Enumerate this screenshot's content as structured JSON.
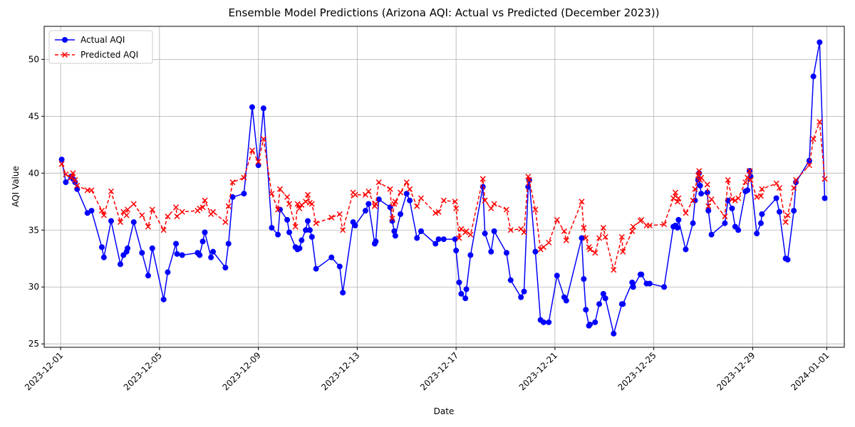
{
  "chart_data": {
    "type": "line",
    "title": "Ensemble Model Predictions (Arizona AQI: Actual vs Predicted (December 2023))",
    "x_label": "Date",
    "y_label": "AQI Value",
    "x": [
      "2023-12-01 01:00",
      "2023-12-01 05:00",
      "2023-12-01 10:00",
      "2023-12-01 12:00",
      "2023-12-01 14:00",
      "2023-12-01 16:00",
      "2023-12-02 02:00",
      "2023-12-02 06:00",
      "2023-12-02 16:00",
      "2023-12-02 18:00",
      "2023-12-03 01:00",
      "2023-12-03 10:00",
      "2023-12-03 13:00",
      "2023-12-03 16:00",
      "2023-12-03 17:00",
      "2023-12-03 23:00",
      "2023-12-04 07:00",
      "2023-12-04 13:00",
      "2023-12-04 17:00",
      "2023-12-05 04:00",
      "2023-12-05 08:00",
      "2023-12-05 16:00",
      "2023-12-05 17:00",
      "2023-12-05 22:00",
      "2023-12-06 13:00",
      "2023-12-06 15:00",
      "2023-12-06 18:00",
      "2023-12-06 20:00",
      "2023-12-07 02:00",
      "2023-12-07 04:00",
      "2023-12-07 16:00",
      "2023-12-07 19:00",
      "2023-12-07 23:00",
      "2023-12-08 10:00",
      "2023-12-08 18:00",
      "2023-12-09 00:00",
      "2023-12-09 05:00",
      "2023-12-09 13:00",
      "2023-12-09 19:00",
      "2023-12-09 21:00",
      "2023-12-10 04:00",
      "2023-12-10 06:00",
      "2023-12-10 12:00",
      "2023-12-10 14:00",
      "2023-12-10 16:00",
      "2023-12-10 18:00",
      "2023-12-10 22:00",
      "2023-12-11 00:00",
      "2023-12-11 02:00",
      "2023-12-11 04:00",
      "2023-12-11 08:00",
      "2023-12-11 23:00",
      "2023-12-12 07:00",
      "2023-12-12 10:00",
      "2023-12-12 20:00",
      "2023-12-12 22:00",
      "2023-12-13 08:00",
      "2023-12-13 11:00",
      "2023-12-13 17:00",
      "2023-12-13 18:00",
      "2023-12-13 21:00",
      "2023-12-14 08:00",
      "2023-12-14 10:00",
      "2023-12-14 12:00",
      "2023-12-14 13:00",
      "2023-12-14 18:00",
      "2023-12-15 00:00",
      "2023-12-15 03:00",
      "2023-12-15 10:00",
      "2023-12-15 14:00",
      "2023-12-16 04:00",
      "2023-12-16 07:00",
      "2023-12-16 12:00",
      "2023-12-16 23:00",
      "2023-12-17 00:00",
      "2023-12-17 03:00",
      "2023-12-17 05:00",
      "2023-12-17 09:00",
      "2023-12-17 10:00",
      "2023-12-17 14:00",
      "2023-12-18 02:00",
      "2023-12-18 04:00",
      "2023-12-18 10:00",
      "2023-12-18 13:00",
      "2023-12-19 01:00",
      "2023-12-19 05:00",
      "2023-12-19 15:00",
      "2023-12-19 18:00",
      "2023-12-19 22:00",
      "2023-12-19 23:00",
      "2023-12-20 05:00",
      "2023-12-20 10:00",
      "2023-12-20 13:00",
      "2023-12-20 18:00",
      "2023-12-21 02:00",
      "2023-12-21 09:00",
      "2023-12-21 11:00",
      "2023-12-22 02:00",
      "2023-12-22 04:00",
      "2023-12-22 06:00",
      "2023-12-22 09:00",
      "2023-12-22 10:00",
      "2023-12-22 15:00",
      "2023-12-22 19:00",
      "2023-12-22 23:00",
      "2023-12-23 01:00",
      "2023-12-23 09:00",
      "2023-12-23 17:00",
      "2023-12-23 18:00",
      "2023-12-24 03:00",
      "2023-12-24 04:00",
      "2023-12-24 11:00",
      "2023-12-24 12:00",
      "2023-12-24 17:00",
      "2023-12-24 20:00",
      "2023-12-25 10:00",
      "2023-12-25 19:00",
      "2023-12-25 21:00",
      "2023-12-25 23:00",
      "2023-12-26 00:00",
      "2023-12-26 07:00",
      "2023-12-26 14:00",
      "2023-12-26 16:00",
      "2023-12-26 19:00",
      "2023-12-26 20:00",
      "2023-12-26 21:00",
      "2023-12-26 22:00",
      "2023-12-27 04:00",
      "2023-12-27 05:00",
      "2023-12-27 08:00",
      "2023-12-27 21:00",
      "2023-12-28 00:00",
      "2023-12-28 04:00",
      "2023-12-28 07:00",
      "2023-12-28 10:00",
      "2023-12-28 17:00",
      "2023-12-28 19:00",
      "2023-12-28 21:00",
      "2023-12-28 22:00",
      "2023-12-29 04:00",
      "2023-12-29 08:00",
      "2023-12-29 09:00",
      "2023-12-29 23:00",
      "2023-12-30 02:00",
      "2023-12-30 08:00",
      "2023-12-30 10:00",
      "2023-12-30 16:00",
      "2023-12-30 18:00",
      "2023-12-31 07:00",
      "2023-12-31 11:00",
      "2023-12-31 17:00",
      "2023-12-31 22:00"
    ],
    "series": [
      {
        "name": "Actual AQI",
        "color": "#0000ff",
        "marker": "circle",
        "dashed": false,
        "values": [
          41.2,
          39.2,
          39.7,
          39.5,
          39.2,
          38.6,
          36.5,
          36.7,
          33.5,
          32.6,
          35.8,
          32.0,
          32.8,
          33.1,
          33.4,
          35.7,
          33.0,
          31.0,
          33.4,
          28.9,
          31.3,
          33.8,
          32.9,
          32.8,
          33.0,
          32.8,
          34.0,
          34.8,
          32.6,
          33.1,
          31.7,
          33.8,
          37.9,
          38.2,
          45.8,
          40.7,
          45.7,
          35.2,
          34.6,
          36.8,
          35.9,
          34.8,
          33.5,
          33.3,
          33.4,
          34.1,
          35.0,
          35.8,
          35.0,
          34.4,
          31.6,
          32.6,
          31.8,
          29.5,
          35.7,
          35.4,
          36.7,
          37.3,
          33.8,
          34.0,
          37.7,
          37.0,
          35.8,
          34.9,
          34.5,
          36.4,
          38.2,
          37.6,
          34.3,
          34.9,
          33.8,
          34.2,
          34.2,
          34.2,
          33.2,
          30.4,
          29.4,
          29.0,
          29.8,
          32.8,
          38.8,
          34.7,
          33.1,
          34.9,
          33.0,
          30.6,
          29.1,
          29.6,
          38.8,
          39.4,
          33.1,
          27.1,
          26.9,
          26.9,
          31.0,
          29.1,
          28.8,
          34.3,
          30.7,
          28.0,
          26.6,
          26.7,
          26.9,
          28.5,
          29.4,
          29.0,
          25.9,
          28.5,
          28.5,
          30.4,
          30.0,
          31.1,
          31.1,
          30.3,
          30.3,
          30.0,
          35.3,
          35.4,
          35.2,
          35.9,
          33.3,
          35.6,
          37.6,
          39.4,
          40.0,
          38.9,
          38.2,
          38.3,
          36.7,
          34.6,
          35.6,
          37.6,
          36.9,
          35.3,
          35.0,
          38.4,
          38.5,
          40.2,
          39.7,
          34.7,
          35.6,
          36.4,
          37.8,
          36.6,
          32.5,
          32.4,
          36.7,
          39.2,
          41.1,
          48.5,
          51.5,
          37.8
        ]
      },
      {
        "name": "Predicted AQI",
        "color": "#ff0000",
        "marker": "x",
        "dashed": true,
        "values": [
          40.8,
          39.9,
          39.6,
          40.0,
          39.4,
          38.9,
          38.5,
          38.5,
          36.7,
          36.3,
          38.4,
          35.7,
          36.6,
          36.3,
          36.8,
          37.3,
          36.3,
          35.3,
          36.8,
          35.0,
          36.2,
          37.0,
          36.2,
          36.6,
          36.7,
          36.9,
          37.0,
          37.6,
          36.4,
          36.6,
          35.7,
          37.1,
          39.2,
          39.6,
          42.0,
          41.0,
          43.0,
          38.2,
          36.8,
          38.6,
          37.9,
          37.3,
          35.3,
          37.3,
          36.9,
          37.2,
          37.5,
          38.1,
          37.4,
          37.3,
          35.6,
          36.1,
          36.4,
          35.0,
          38.3,
          38.1,
          38.1,
          38.4,
          37.1,
          37.3,
          39.2,
          38.6,
          36.0,
          37.3,
          37.5,
          38.3,
          39.2,
          38.6,
          37.1,
          37.8,
          36.5,
          36.6,
          37.6,
          37.5,
          36.9,
          34.3,
          35.1,
          34.8,
          34.9,
          34.6,
          39.5,
          37.6,
          36.9,
          37.3,
          36.8,
          35.0,
          35.1,
          34.8,
          39.7,
          39.4,
          36.8,
          33.3,
          33.5,
          33.9,
          35.9,
          34.9,
          34.1,
          37.5,
          35.2,
          34.3,
          33.5,
          33.3,
          33.0,
          34.3,
          35.2,
          34.4,
          31.5,
          34.4,
          33.1,
          34.9,
          35.3,
          35.8,
          35.9,
          35.4,
          35.4,
          35.5,
          37.8,
          38.3,
          37.5,
          37.8,
          36.5,
          37.6,
          38.6,
          39.8,
          40.2,
          39.4,
          39.6,
          39.0,
          37.1,
          37.7,
          36.2,
          39.4,
          37.7,
          37.6,
          37.8,
          39.2,
          39.6,
          40.2,
          39.4,
          37.9,
          38.0,
          38.6,
          39.1,
          38.7,
          35.7,
          36.3,
          38.7,
          39.4,
          40.7,
          43.0,
          44.5,
          39.5
        ]
      }
    ],
    "xlim": [
      "2023-11-30 08:00",
      "2024-01-01 17:00"
    ],
    "xticks": [
      "2023-12-01",
      "2023-12-05",
      "2023-12-09",
      "2023-12-13",
      "2023-12-17",
      "2023-12-21",
      "2023-12-25",
      "2023-12-29",
      "2024-01-01"
    ],
    "ylim": [
      24.7,
      52.9
    ],
    "yticks": [
      25,
      30,
      35,
      40,
      45,
      50
    ],
    "grid": true,
    "legend": "upper left"
  }
}
